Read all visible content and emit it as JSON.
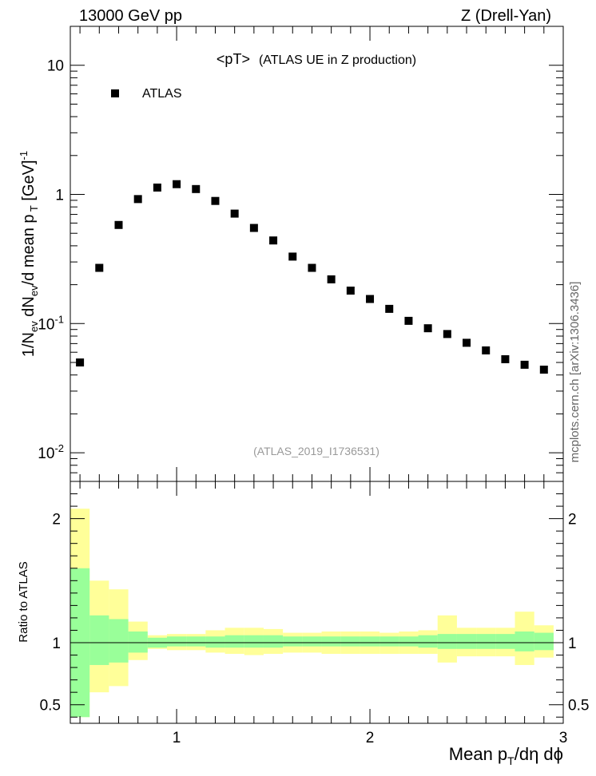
{
  "header": {
    "left": "13000 GeV pp",
    "right": "Z (Drell-Yan)"
  },
  "chart_data": [
    {
      "type": "scatter",
      "title": "<pT>",
      "subtitle": "(ATLAS UE in Z production)",
      "analysis_tag": "(ATLAS_2019_I1736531)",
      "ylabel": "1/N_ev dN_ev/d mean p_T [GeV]^-1",
      "yscale": "log",
      "ylim": [
        0.006,
        20
      ],
      "xlim": [
        0.45,
        3.0
      ],
      "legend": {
        "placement": "top-left",
        "marker": "square",
        "label": "ATLAS"
      },
      "series": [
        {
          "name": "ATLAS",
          "color": "#000000",
          "x": [
            0.5,
            0.6,
            0.7,
            0.8,
            0.9,
            1.0,
            1.1,
            1.2,
            1.3,
            1.4,
            1.5,
            1.6,
            1.7,
            1.8,
            1.9,
            2.0,
            2.1,
            2.2,
            2.3,
            2.4,
            2.5,
            2.6,
            2.7,
            2.8,
            2.9
          ],
          "y": [
            0.05,
            0.27,
            0.58,
            0.92,
            1.13,
            1.2,
            1.1,
            0.89,
            0.71,
            0.55,
            0.44,
            0.33,
            0.27,
            0.22,
            0.18,
            0.155,
            0.13,
            0.105,
            0.092,
            0.083,
            0.071,
            0.062,
            0.053,
            0.048,
            0.044
          ]
        }
      ],
      "y_ticks": [
        "10^-2",
        "10^-1",
        "1",
        "10"
      ],
      "side_label": "mcplots.cern.ch [arXiv:1306.3436]"
    },
    {
      "type": "area",
      "ylabel": "Ratio to ATLAS",
      "xlabel": "Mean p_T/dη dφ",
      "ylim": [
        0.35,
        2.3
      ],
      "xlim": [
        0.45,
        3.0
      ],
      "reference_line": 1.0,
      "y_ticks": [
        "0.5",
        "1",
        "2"
      ],
      "x_ticks": [
        "1",
        "2",
        "3"
      ],
      "bins": {
        "edges": [
          0.45,
          0.55,
          0.65,
          0.75,
          0.85,
          0.95,
          1.05,
          1.15,
          1.25,
          1.35,
          1.45,
          1.55,
          1.65,
          1.75,
          1.85,
          1.95,
          2.05,
          2.15,
          2.25,
          2.35,
          2.45,
          2.55,
          2.65,
          2.75,
          2.85,
          2.95
        ],
        "stat_band": {
          "name": "stat",
          "color": "#99ff99",
          "low": [
            0.4,
            0.82,
            0.84,
            0.92,
            0.96,
            0.97,
            0.97,
            0.96,
            0.96,
            0.96,
            0.96,
            0.97,
            0.97,
            0.97,
            0.97,
            0.97,
            0.97,
            0.97,
            0.96,
            0.95,
            0.95,
            0.95,
            0.95,
            0.93,
            0.94
          ],
          "high": [
            1.6,
            1.22,
            1.19,
            1.09,
            1.04,
            1.05,
            1.05,
            1.05,
            1.06,
            1.06,
            1.06,
            1.05,
            1.05,
            1.05,
            1.05,
            1.05,
            1.05,
            1.05,
            1.06,
            1.07,
            1.07,
            1.07,
            1.07,
            1.09,
            1.08
          ]
        },
        "syst_band": {
          "name": "stat+syst",
          "color": "#ffff99",
          "low": [
            0.4,
            0.6,
            0.65,
            0.86,
            0.95,
            0.94,
            0.94,
            0.92,
            0.91,
            0.9,
            0.91,
            0.92,
            0.92,
            0.91,
            0.91,
            0.91,
            0.91,
            0.91,
            0.91,
            0.84,
            0.89,
            0.89,
            0.89,
            0.82,
            0.88
          ],
          "high": [
            2.08,
            1.5,
            1.43,
            1.17,
            1.06,
            1.07,
            1.07,
            1.1,
            1.12,
            1.12,
            1.11,
            1.08,
            1.08,
            1.09,
            1.09,
            1.09,
            1.08,
            1.09,
            1.1,
            1.22,
            1.12,
            1.12,
            1.12,
            1.25,
            1.14
          ]
        }
      }
    }
  ]
}
